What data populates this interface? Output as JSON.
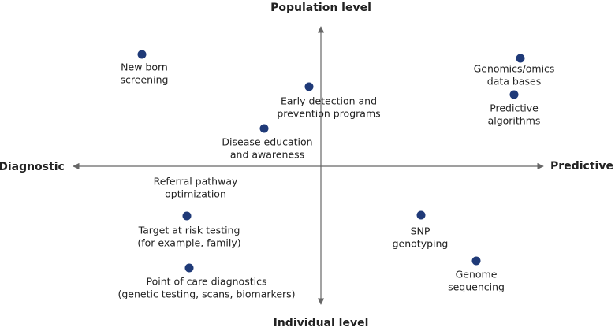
{
  "axes": {
    "top": "Population level",
    "bottom": "Individual level",
    "left": "Diagnostic",
    "right": "Predictive"
  },
  "nodes": [
    {
      "lines": [
        "New born",
        "screening"
      ]
    },
    {
      "lines": [
        "Early detection and",
        "prevention programs"
      ]
    },
    {
      "lines": [
        "Disease education",
        "and awareness"
      ]
    },
    {
      "lines": [
        "Genomics/omics",
        "data bases"
      ]
    },
    {
      "lines": [
        "Predictive",
        "algorithms"
      ]
    },
    {
      "lines": [
        "Referral pathway",
        "optimization"
      ]
    },
    {
      "lines": [
        "Target at risk testing",
        "(for example, family)"
      ]
    },
    {
      "lines": [
        "SNP",
        "genotyping"
      ]
    },
    {
      "lines": [
        "Genome",
        "sequencing"
      ]
    },
    {
      "lines": [
        "Point of care diagnostics",
        "(genetic testing, scans, biomarkers)"
      ]
    }
  ]
}
